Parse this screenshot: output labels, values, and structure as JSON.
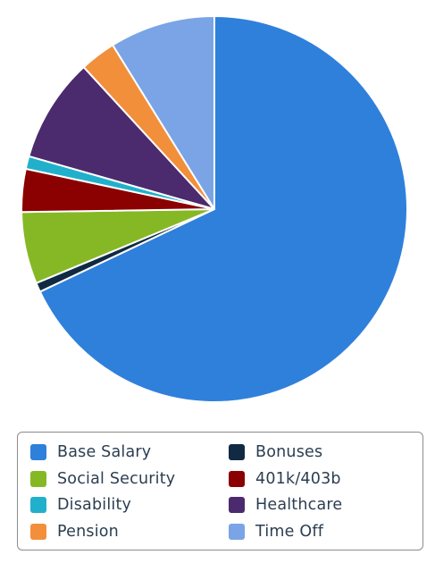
{
  "chart_data": {
    "type": "pie",
    "title": "",
    "legend_position": "bottom",
    "start_angle_deg": 0,
    "direction": "clockwise",
    "series": [
      {
        "name": "Base Salary",
        "value": 70.0,
        "color": "#2f80db"
      },
      {
        "name": "Bonuses",
        "value": 0.8,
        "color": "#102a43"
      },
      {
        "name": "Social Security",
        "value": 6.2,
        "color": "#86b826"
      },
      {
        "name": "401k/403b",
        "value": 3.7,
        "color": "#8b0000"
      },
      {
        "name": "Disability",
        "value": 1.1,
        "color": "#21b0cb"
      },
      {
        "name": "Healthcare",
        "value": 9.0,
        "color": "#4b2a6e"
      },
      {
        "name": "Pension",
        "value": 3.1,
        "color": "#f28f3b"
      },
      {
        "name": "Time Off",
        "value": 9.1,
        "color": "#7aa4e6"
      }
    ]
  },
  "legend": {
    "items": [
      {
        "label": "Base Salary",
        "color": "#2f80db"
      },
      {
        "label": "Bonuses",
        "color": "#102a43"
      },
      {
        "label": "Social Security",
        "color": "#86b826"
      },
      {
        "label": "401k/403b",
        "color": "#8b0000"
      },
      {
        "label": "Disability",
        "color": "#21b0cb"
      },
      {
        "label": "Healthcare",
        "color": "#4b2a6e"
      },
      {
        "label": "Pension",
        "color": "#f28f3b"
      },
      {
        "label": "Time Off",
        "color": "#7aa4e6"
      }
    ]
  }
}
